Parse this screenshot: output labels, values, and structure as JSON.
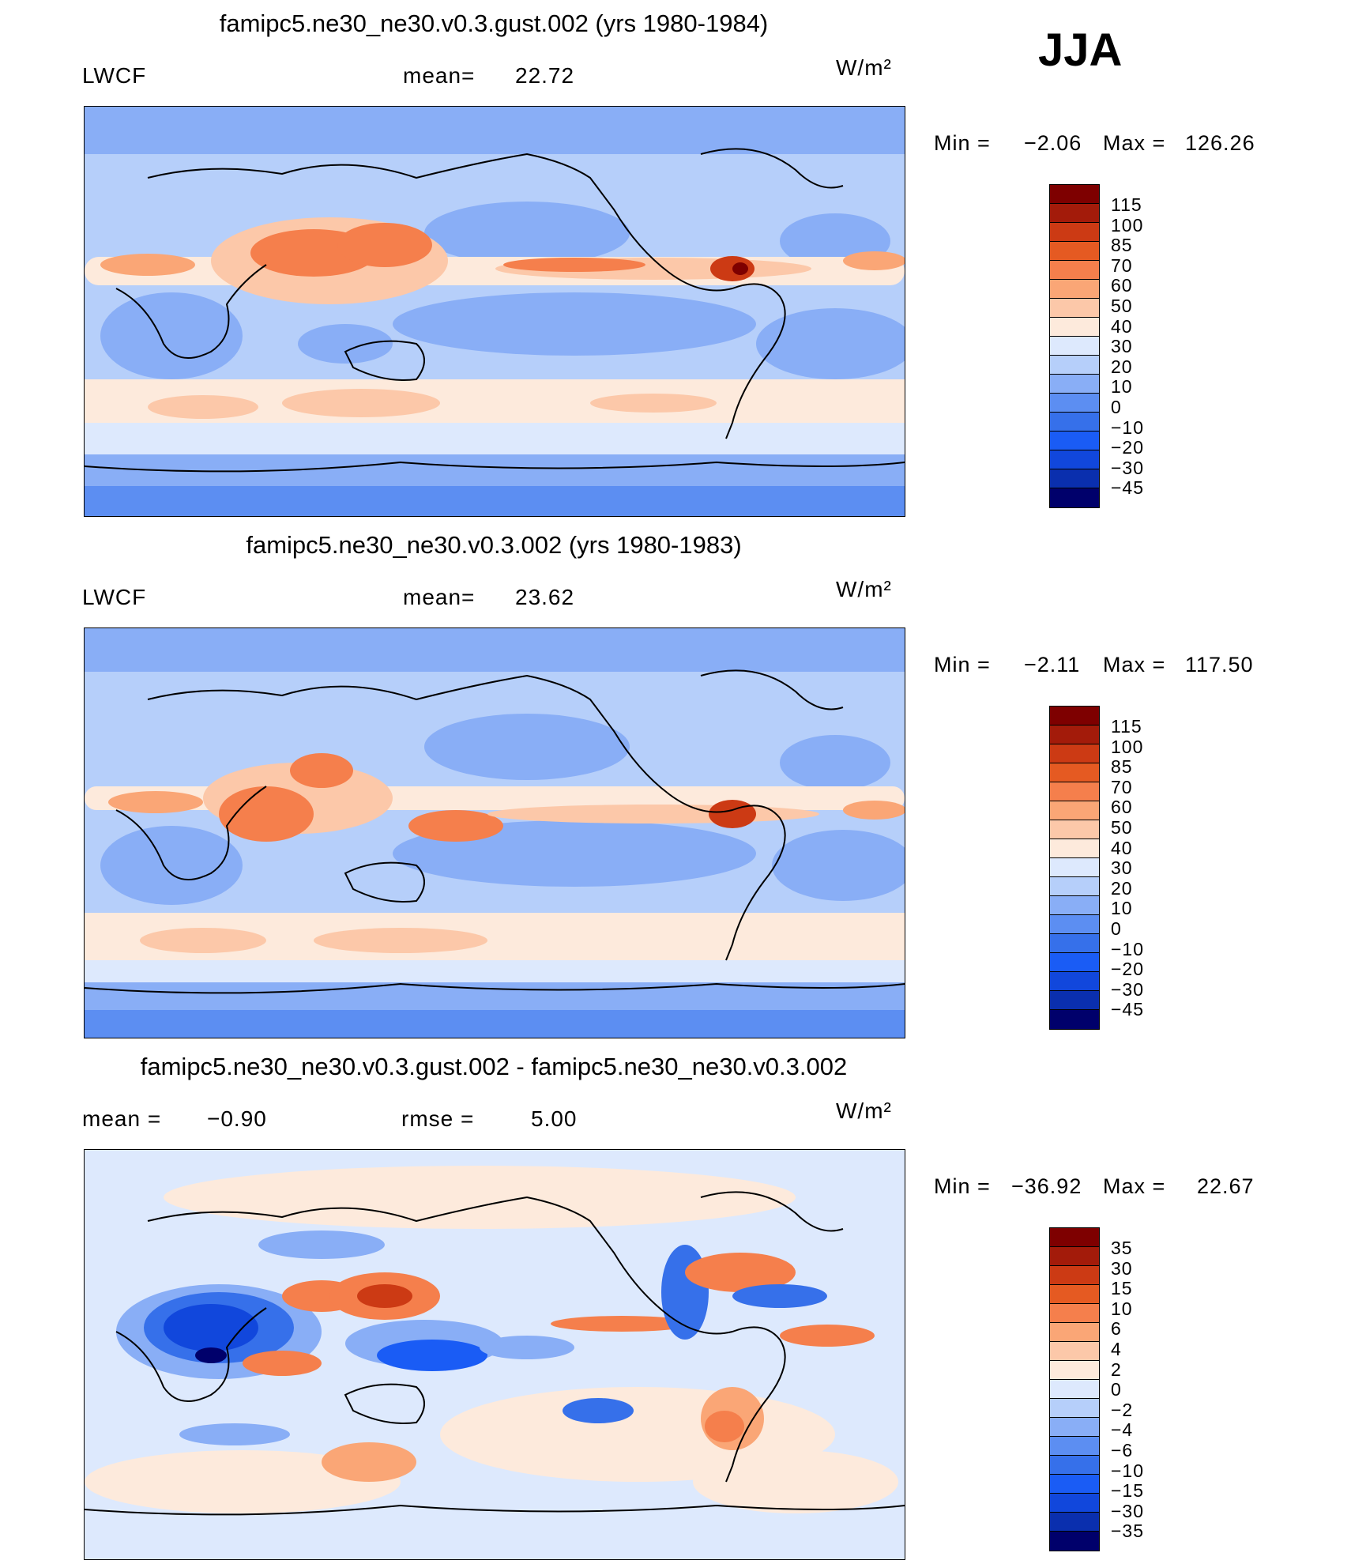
{
  "season": "JJA",
  "units": "W/m²",
  "colors": {
    "scale_abs": [
      "#00006b",
      "#0a2fae",
      "#1147dc",
      "#1a5cf5",
      "#3670ea",
      "#5c8ef2",
      "#89aef6",
      "#b6cffa",
      "#dde9fd",
      "#fdeadc",
      "#fcc8a9",
      "#faa676",
      "#f57f4c",
      "#e55a22",
      "#cc3a14",
      "#a31b0a",
      "#7e0000"
    ],
    "scale_diff": [
      "#00006b",
      "#0a2fae",
      "#1147dc",
      "#1a5cf5",
      "#3670ea",
      "#5c8ef2",
      "#89aef6",
      "#b6cffa",
      "#dde9fd",
      "#fdeadc",
      "#fcc8a9",
      "#faa676",
      "#f57f4c",
      "#e55a22",
      "#cc3a14",
      "#a31b0a",
      "#7e0000"
    ]
  },
  "chart_data": [
    {
      "type": "heatmap",
      "title": "famipc5.ne30_ne30.v0.3.gust.002 (yrs 1980-1984)",
      "variable": "LWCF",
      "mean_label": "mean=",
      "mean": "22.72",
      "units": "W/m²",
      "min_label": "Min  =",
      "min": "−2.06",
      "max_label": "Max  =",
      "max": "126.26",
      "contour_levels": [
        "−45",
        "−30",
        "−20",
        "−10",
        "0",
        "10",
        "20",
        "30",
        "40",
        "50",
        "60",
        "70",
        "85",
        "100",
        "115"
      ]
    },
    {
      "type": "heatmap",
      "title": "famipc5.ne30_ne30.v0.3.002 (yrs 1980-1983)",
      "variable": "LWCF",
      "mean_label": "mean=",
      "mean": "23.62",
      "units": "W/m²",
      "min_label": "Min  =",
      "min": "−2.11",
      "max_label": "Max  =",
      "max": "117.50",
      "contour_levels": [
        "−45",
        "−30",
        "−20",
        "−10",
        "0",
        "10",
        "20",
        "30",
        "40",
        "50",
        "60",
        "70",
        "85",
        "100",
        "115"
      ]
    },
    {
      "type": "heatmap",
      "title": "famipc5.ne30_ne30.v0.3.gust.002 - famipc5.ne30_ne30.v0.3.002",
      "mean_label": "mean  =",
      "mean": "−0.90",
      "rmse_label": "rmse  =",
      "rmse": "5.00",
      "units": "W/m²",
      "min_label": "Min  =",
      "min": "−36.92",
      "max_label": "Max  =",
      "max": "22.67",
      "contour_levels": [
        "−35",
        "−30",
        "−15",
        "−10",
        "−6",
        "−4",
        "−2",
        "0",
        "2",
        "4",
        "6",
        "10",
        "15",
        "30",
        "35"
      ]
    }
  ]
}
